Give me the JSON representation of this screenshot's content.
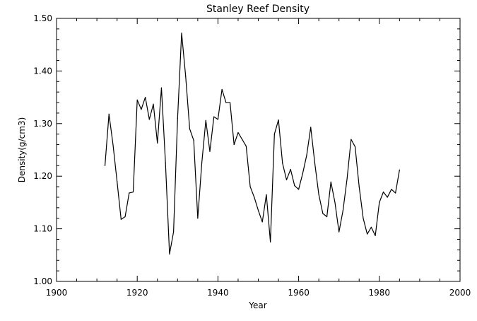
{
  "chart_data": {
    "type": "line",
    "title": "Stanley Reef Density",
    "xlabel": "Year",
    "ylabel": "Density(g/cm3)",
    "xlim": [
      1900,
      2000
    ],
    "ylim": [
      1.0,
      1.5
    ],
    "x_ticks": [
      1900,
      1920,
      1940,
      1960,
      1980,
      2000
    ],
    "x_tick_labels": [
      "1900",
      "1920",
      "1940",
      "1960",
      "1980",
      "2000"
    ],
    "y_ticks": [
      1.0,
      1.1,
      1.2,
      1.3,
      1.4,
      1.5
    ],
    "y_tick_labels": [
      "1.00",
      "1.10",
      "1.20",
      "1.30",
      "1.40",
      "1.50"
    ],
    "grid": false,
    "legend": "none",
    "line_color": "#000000",
    "series": [
      {
        "x": [
          1912,
          1913,
          1914,
          1915,
          1916,
          1917,
          1918,
          1919,
          1920,
          1921,
          1922,
          1923,
          1924,
          1925,
          1926,
          1927,
          1928,
          1929,
          1930,
          1931,
          1932,
          1933,
          1934,
          1935,
          1936,
          1937,
          1938,
          1939,
          1940,
          1941,
          1942,
          1943,
          1944,
          1945,
          1946,
          1947,
          1948,
          1949,
          1950,
          1951,
          1952,
          1953,
          1954,
          1955,
          1956,
          1957,
          1958,
          1959,
          1960,
          1961,
          1962,
          1963,
          1964,
          1965,
          1966,
          1967,
          1968,
          1969,
          1970,
          1971,
          1972,
          1973,
          1974,
          1975,
          1976,
          1977,
          1978,
          1979,
          1980,
          1981,
          1982,
          1983,
          1984,
          1985
        ],
        "y": [
          1.22,
          1.318,
          1.26,
          1.19,
          1.118,
          1.123,
          1.168,
          1.17,
          1.345,
          1.327,
          1.35,
          1.308,
          1.337,
          1.263,
          1.368,
          1.225,
          1.052,
          1.094,
          1.31,
          1.472,
          1.39,
          1.29,
          1.268,
          1.12,
          1.225,
          1.306,
          1.247,
          1.313,
          1.308,
          1.365,
          1.34,
          1.34,
          1.26,
          1.283,
          1.27,
          1.257,
          1.18,
          1.16,
          1.135,
          1.113,
          1.165,
          1.075,
          1.28,
          1.307,
          1.225,
          1.193,
          1.213,
          1.182,
          1.175,
          1.205,
          1.24,
          1.293,
          1.225,
          1.165,
          1.129,
          1.123,
          1.189,
          1.15,
          1.094,
          1.135,
          1.195,
          1.27,
          1.256,
          1.18,
          1.12,
          1.09,
          1.103,
          1.087,
          1.15,
          1.17,
          1.16,
          1.175,
          1.168,
          1.212
        ]
      }
    ]
  }
}
